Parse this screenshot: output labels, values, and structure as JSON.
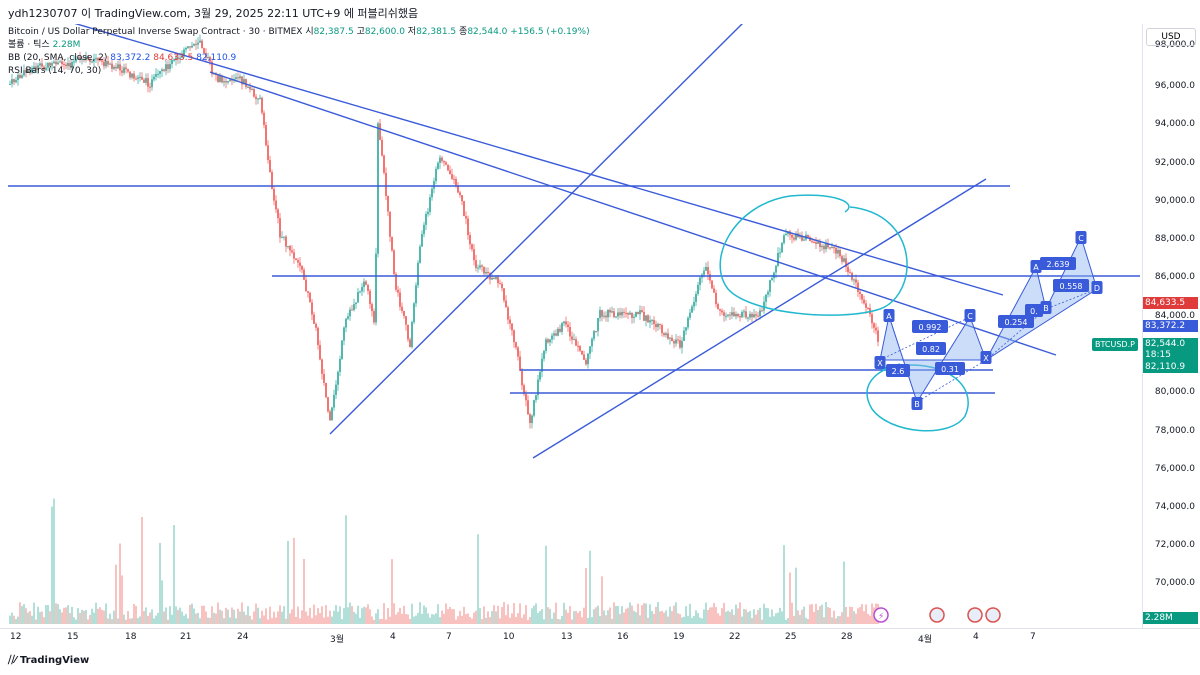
{
  "header": {
    "caption": "ydh1230707 이 TradingView.com, 3월 29, 2025 22:11 UTC+9 에 퍼블리쉬했음"
  },
  "legend": {
    "symbol_line": "Bitcoin / US Dollar Perpetual Inverse Swap Contract · 30 · BITMEX",
    "ohlc": {
      "open_label": "시",
      "open": "82,387.5",
      "high_label": "고",
      "high": "82,600.0",
      "low_label": "저",
      "low": "82,381.5",
      "close_label": "종",
      "close": "82,544.0",
      "change": "+156.5 (+0.19%)"
    },
    "volume_label": "볼륨 · 틱스",
    "volume_value": "2.28M",
    "bb_label": "BB (20, SMA, close, 2)",
    "bb_basis": "83,372.2",
    "bb_upper": "84,633.5",
    "bb_lower": "82,110.9",
    "rsi_label": "RSI Bars (14, 70, 30)"
  },
  "price_axis": {
    "currency": "USD",
    "ticks": [
      "96,000.0",
      "94,000.0",
      "92,000.0",
      "90,000.0",
      "88,000.0",
      "86,000.0",
      "84,000.0",
      "82,000.0",
      "80,000.0",
      "78,000.0",
      "76,000.0",
      "74,000.0",
      "72,000.0",
      "70,000.0"
    ],
    "top_tick": "98,000.0",
    "tags": {
      "bb_upper": "84,633.5",
      "bb_basis": "83,372.2",
      "last_price": "82,544.0",
      "countdown": "18:15",
      "bb_lower": "82,110.9",
      "volume": "2.28M"
    }
  },
  "symbol_tag": "BTCUSD.P",
  "time_axis": {
    "ticks": [
      "12",
      "15",
      "18",
      "21",
      "24",
      "3월",
      "4",
      "7",
      "10",
      "13",
      "16",
      "19",
      "22",
      "25",
      "28",
      "4월",
      "4",
      "7"
    ]
  },
  "pattern": {
    "points": [
      "X",
      "A",
      "B",
      "C",
      "X",
      "A",
      "B",
      "C",
      "D"
    ],
    "ratios": [
      "0.992",
      "0.82",
      "2.6",
      "0.31",
      "0.254",
      "0.",
      "2.639",
      "0.558"
    ]
  },
  "footer": {
    "brand": "TradingView"
  },
  "colors": {
    "up": "#26a69a",
    "down": "#ef5350",
    "trendline": "#3a5bd9",
    "annotation": "#22b8cf",
    "pattern_fill": "#8fb3f2",
    "last_price": "#089981",
    "bb_upper_tag": "#e03b3b",
    "bb_basis_tag": "#3a5bd9"
  }
}
